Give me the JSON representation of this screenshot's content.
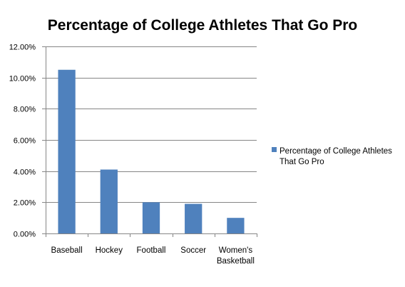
{
  "chart_data": {
    "type": "bar",
    "title": "Percentage of College Athletes That Go Pro",
    "categories": [
      [
        "Baseball"
      ],
      [
        "Hockey"
      ],
      [
        "Football"
      ],
      [
        "Soccer"
      ],
      [
        "Women's",
        "Basketball"
      ]
    ],
    "series": [
      {
        "name": "Percentage of College Athletes That Go Pro",
        "name_lines": [
          "Percentage of College Athletes",
          "That Go Pro"
        ],
        "values": [
          10.5,
          4.1,
          2.0,
          1.9,
          1.0
        ],
        "color": "#4F81BD"
      }
    ],
    "yaxis": {
      "min": 0,
      "max": 12,
      "step": 2,
      "tick_labels": [
        "0.00%",
        "2.00%",
        "4.00%",
        "6.00%",
        "8.00%",
        "10.00%",
        "12.00%"
      ]
    },
    "xlabel": "",
    "ylabel": "",
    "grid": true,
    "legend_position": "right"
  }
}
